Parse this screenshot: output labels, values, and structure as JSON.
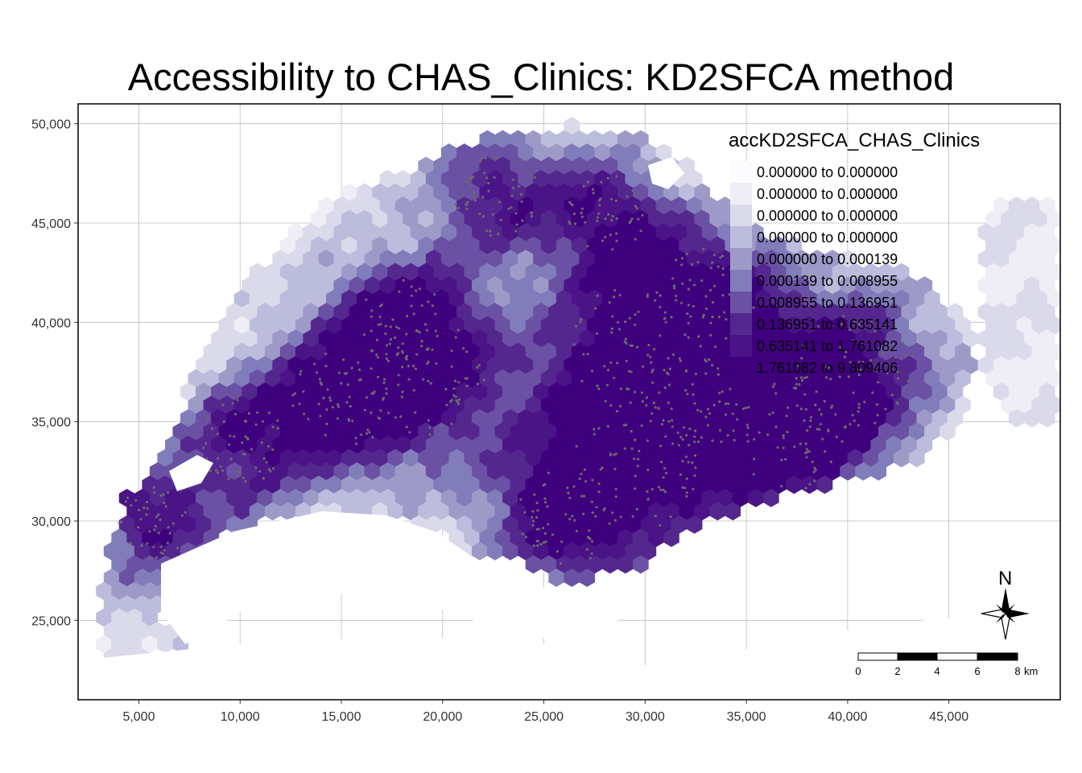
{
  "title": "Accessibility to CHAS_Clinics: KD2SFCA method",
  "axes": {
    "x_ticks": [
      "5,000",
      "10,000",
      "15,000",
      "20,000",
      "25,000",
      "30,000",
      "35,000",
      "40,000",
      "45,000"
    ],
    "y_ticks": [
      "50,000",
      "45,000",
      "40,000",
      "35,000",
      "30,000",
      "25,000"
    ],
    "x_values": [
      5000,
      10000,
      15000,
      20000,
      25000,
      30000,
      35000,
      40000,
      45000
    ],
    "y_values": [
      50000,
      45000,
      40000,
      35000,
      30000,
      25000
    ],
    "xlim": [
      2000,
      50500
    ],
    "ylim": [
      21000,
      51000
    ],
    "grid": true
  },
  "legend": {
    "title": "accKD2SFCA_CHAS_Clinics",
    "placement": "top-right",
    "classes": [
      {
        "label": "0.000000 to 0.000000",
        "color": "#fcfbfd"
      },
      {
        "label": "0.000000 to 0.000000",
        "color": "#efedf5"
      },
      {
        "label": "0.000000 to 0.000000",
        "color": "#dadaeb"
      },
      {
        "label": "0.000000 to 0.000000",
        "color": "#bcbddc"
      },
      {
        "label": "0.000000 to 0.000139",
        "color": "#9e9ac8"
      },
      {
        "label": "0.000139 to 0.008955",
        "color": "#807dba"
      },
      {
        "label": "0.008955 to 0.136951",
        "color": "#6a51a3"
      },
      {
        "label": "0.136951 to 0.635141",
        "color": "#54278f"
      },
      {
        "label": "0.635141 to 1.761082",
        "color": "#4a1486"
      },
      {
        "label": "1.761082 to 9.809406",
        "color": "#3f007d"
      }
    ]
  },
  "compass": {
    "label": "N"
  },
  "scale_bar": {
    "ticks": [
      "0",
      "2",
      "4",
      "6",
      "8"
    ],
    "unit": "km"
  },
  "colors": {
    "clinic_points": "#6b6b6b",
    "frame": "#000000",
    "grid": "#bdbdbd"
  }
}
